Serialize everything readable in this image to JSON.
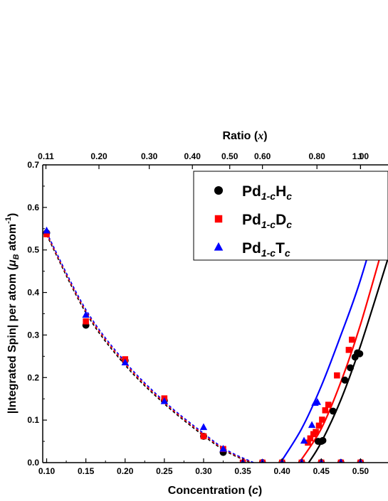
{
  "chart_data": {
    "type": "scatter",
    "xlabel": "Concentration",
    "xlabel_var": "c",
    "ylabel": "|Integrated Spin| per atom",
    "ylabel_unit_symbol": "μ",
    "ylabel_unit_sub": "B",
    "ylabel_unit_rest": " atom",
    "ylabel_unit_sup": "-1",
    "top_xlabel": "Ratio",
    "top_xlabel_var": "x",
    "xlim": [
      0.095,
      0.535
    ],
    "ylim": [
      0.0,
      0.7
    ],
    "x_ticks": [
      "0.10",
      "0.15",
      "0.20",
      "0.25",
      "0.30",
      "0.35",
      "0.40",
      "0.45",
      "0.50"
    ],
    "y_ticks": [
      "0.0",
      "0.1",
      "0.2",
      "0.3",
      "0.4",
      "0.5",
      "0.6",
      "0.7"
    ],
    "top_ticks": [
      "0.11",
      "0.20",
      "0.30",
      "0.40",
      "0.50",
      "0.60",
      "0.80",
      "1.00",
      "1"
    ],
    "legend_position": "top-right",
    "series": [
      {
        "name_main": "Pd",
        "name_sub1": "1-c",
        "name_el": "H",
        "name_sub2": "c",
        "color": "#000000",
        "marker": "circle",
        "points": [
          [
            0.1,
            0.54
          ],
          [
            0.15,
            0.323
          ],
          [
            0.2,
            0.24
          ],
          [
            0.25,
            0.146
          ],
          [
            0.3,
            0.062
          ],
          [
            0.325,
            0.024
          ],
          [
            0.375,
            0.0
          ],
          [
            0.4,
            0.0
          ],
          [
            0.425,
            0.0
          ],
          [
            0.45,
            0.0
          ],
          [
            0.475,
            0.0
          ],
          [
            0.5,
            0.0
          ],
          [
            0.446,
            0.05
          ],
          [
            0.45,
            0.05
          ],
          [
            0.452,
            0.052
          ],
          [
            0.465,
            0.121
          ],
          [
            0.48,
            0.194
          ],
          [
            0.487,
            0.223
          ],
          [
            0.493,
            0.248
          ],
          [
            0.496,
            0.258
          ],
          [
            0.499,
            0.256
          ]
        ],
        "fit_left": [
          [
            0.1,
            0.535
          ],
          [
            0.15,
            0.352
          ],
          [
            0.2,
            0.229
          ],
          [
            0.25,
            0.138
          ],
          [
            0.3,
            0.063
          ],
          [
            0.33,
            0.025
          ],
          [
            0.36,
            0.0
          ]
        ],
        "fit_right": [
          [
            0.434,
            0.0
          ],
          [
            0.45,
            0.048
          ],
          [
            0.475,
            0.148
          ],
          [
            0.5,
            0.275
          ],
          [
            0.535,
            0.48
          ]
        ]
      },
      {
        "name_main": "Pd",
        "name_sub1": "1-c",
        "name_el": "D",
        "name_sub2": "c",
        "color": "#ff0000",
        "marker": "square",
        "points": [
          [
            0.1,
            0.537
          ],
          [
            0.15,
            0.332
          ],
          [
            0.2,
            0.243
          ],
          [
            0.25,
            0.151
          ],
          [
            0.3,
            0.062
          ],
          [
            0.325,
            0.032
          ],
          [
            0.35,
            0.0
          ],
          [
            0.375,
            0.0
          ],
          [
            0.4,
            0.0
          ],
          [
            0.425,
            0.0
          ],
          [
            0.45,
            0.0
          ],
          [
            0.475,
            0.0
          ],
          [
            0.5,
            0.0
          ],
          [
            0.433,
            0.047
          ],
          [
            0.436,
            0.057
          ],
          [
            0.44,
            0.067
          ],
          [
            0.443,
            0.072
          ],
          [
            0.447,
            0.087
          ],
          [
            0.451,
            0.101
          ],
          [
            0.455,
            0.123
          ],
          [
            0.459,
            0.136
          ],
          [
            0.47,
            0.205
          ],
          [
            0.485,
            0.265
          ],
          [
            0.489,
            0.289
          ]
        ],
        "fit_left": [
          [
            0.1,
            0.538
          ],
          [
            0.15,
            0.356
          ],
          [
            0.2,
            0.233
          ],
          [
            0.25,
            0.141
          ],
          [
            0.3,
            0.066
          ],
          [
            0.33,
            0.027
          ],
          [
            0.362,
            0.0
          ]
        ],
        "fit_right": [
          [
            0.422,
            0.0
          ],
          [
            0.45,
            0.08
          ],
          [
            0.475,
            0.19
          ],
          [
            0.5,
            0.325
          ],
          [
            0.535,
            0.55
          ]
        ]
      },
      {
        "name_main": "Pd",
        "name_sub1": "1-c",
        "name_el": "T",
        "name_sub2": "c",
        "color": "#0000ff",
        "marker": "triangle",
        "points": [
          [
            0.1,
            0.545
          ],
          [
            0.15,
            0.347
          ],
          [
            0.2,
            0.235
          ],
          [
            0.25,
            0.144
          ],
          [
            0.3,
            0.083
          ],
          [
            0.325,
            0.032
          ],
          [
            0.35,
            0.0
          ],
          [
            0.375,
            0.0
          ],
          [
            0.4,
            0.0
          ],
          [
            0.425,
            0.0
          ],
          [
            0.45,
            0.0
          ],
          [
            0.475,
            0.0
          ],
          [
            0.5,
            0.0
          ],
          [
            0.428,
            0.051
          ],
          [
            0.438,
            0.088
          ],
          [
            0.442,
            0.14
          ],
          [
            0.445,
            0.142
          ]
        ],
        "fit_left": [
          [
            0.1,
            0.541
          ],
          [
            0.15,
            0.36
          ],
          [
            0.2,
            0.237
          ],
          [
            0.25,
            0.144
          ],
          [
            0.3,
            0.069
          ],
          [
            0.33,
            0.029
          ],
          [
            0.364,
            0.0
          ]
        ],
        "fit_right": [
          [
            0.398,
            0.0
          ],
          [
            0.425,
            0.08
          ],
          [
            0.45,
            0.18
          ],
          [
            0.475,
            0.3
          ],
          [
            0.5,
            0.43
          ],
          [
            0.535,
            0.65
          ]
        ]
      }
    ]
  }
}
